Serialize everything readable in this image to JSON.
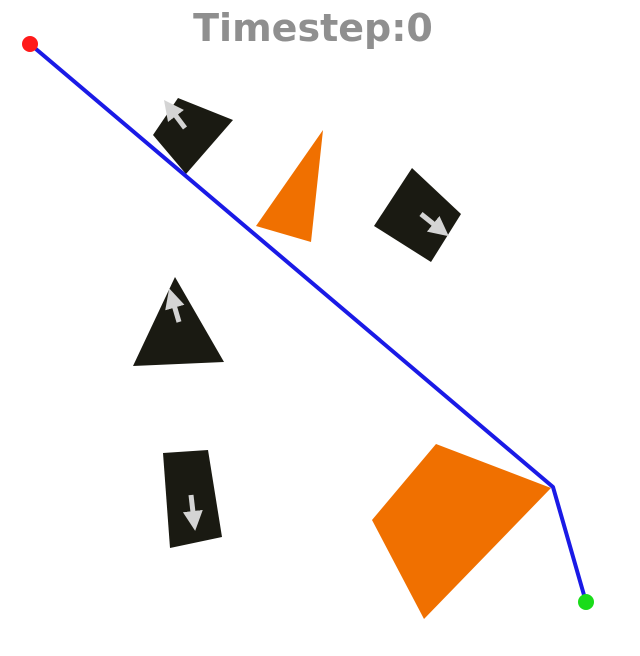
{
  "header": {
    "timestep_label": "Timestep:0"
  },
  "colors": {
    "background": "#ffffff",
    "path": "#1a1ae6",
    "start": "#ff1a1a",
    "goal": "#1adc1a",
    "static_obstacle": "#f07000",
    "dynamic_obstacle": "#1a1a12",
    "arrow": "#d4d4d4",
    "label": "#8f8f8f"
  },
  "icons": {
    "start": "red-dot",
    "goal": "green-dot",
    "motion_direction": "arrow"
  }
}
